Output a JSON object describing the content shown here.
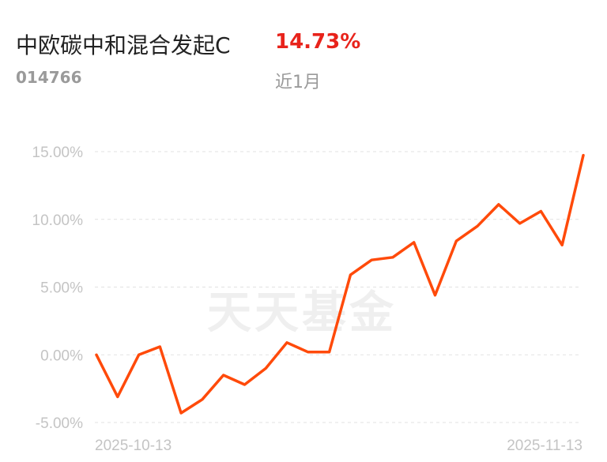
{
  "header": {
    "fund_name": "中欧碳中和混合发起C",
    "return_value": "14.73%",
    "fund_code": "014766",
    "period": "近1月"
  },
  "watermark": "天天基金",
  "colors": {
    "line": "#ff4a0a",
    "return": "#e8231b"
  },
  "chart_data": {
    "type": "line",
    "title": "",
    "xlabel": "",
    "ylabel": "",
    "ylim": [
      -5,
      15
    ],
    "yticks": [
      15,
      10,
      5,
      0,
      -5
    ],
    "ytick_labels": [
      "15.00%",
      "10.00%",
      "5.00%",
      "0.00%",
      "-5.00%"
    ],
    "xtick_labels": [
      "2025-10-13",
      "2025-11-13"
    ],
    "grid": true,
    "series": [
      {
        "values": [
          0.0,
          -3.1,
          0.0,
          0.6,
          -4.3,
          -3.3,
          -1.5,
          -2.2,
          -1.0,
          0.9,
          0.2,
          0.2,
          5.9,
          7.0,
          7.2,
          8.3,
          4.4,
          8.4,
          9.5,
          11.1,
          9.7,
          10.6,
          8.1,
          14.73
        ]
      }
    ]
  }
}
